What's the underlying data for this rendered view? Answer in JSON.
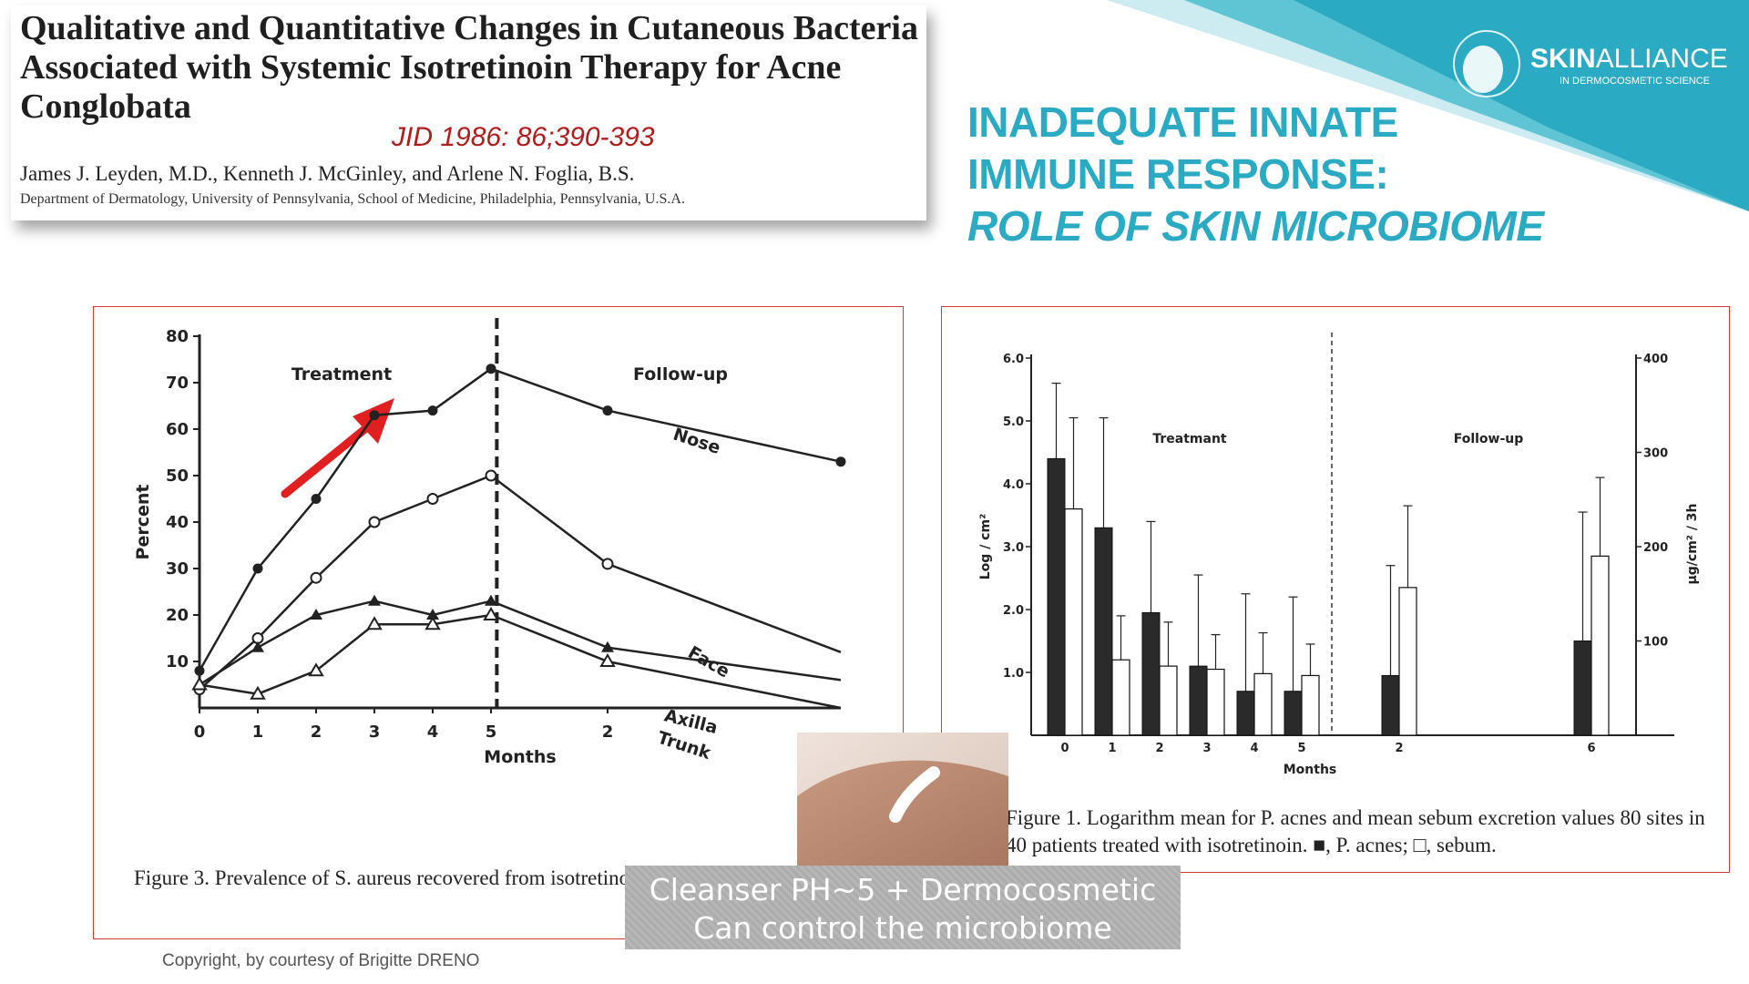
{
  "brand": {
    "name_bold": "SKIN",
    "name_light": "ALLIANCE",
    "tagline": "IN DERMOCOSMETIC SCIENCE",
    "accent": "#2aaac3"
  },
  "paper": {
    "title": "Qualitative and Quantitative Changes in Cutaneous Bacteria Associated with Systemic Isotretinoin Therapy for Acne Conglobata",
    "reference": "JID 1986: 86;390-393",
    "authors": "James J. Leyden, M.D., Kenneth J. McGinley, and Arlene N. Foglia, B.S.",
    "affiliation": "Department of Dermatology, University of Pennsylvania, School of Medicine, Philadelphia, Pennsylvania, U.S.A."
  },
  "headline": {
    "line1": "INADEQUATE INNATE",
    "line2": "IMMUNE RESPONSE:",
    "line3": "ROLE OF SKIN MICROBIOME"
  },
  "banner": {
    "line1": "Cleanser PH~5  + Dermocosmetic",
    "line2": "Can control the microbiome"
  },
  "copyright": "Copyright, by courtesy of Brigitte DRENO",
  "chart_data": [
    {
      "type": "line",
      "caption": "Figure 3. Prevalence of S. aureus recovered from isotretinoin.",
      "xlabel": "Months",
      "ylabel": "Percent",
      "ylim": [
        0,
        80
      ],
      "yticks": [
        10,
        20,
        30,
        40,
        50,
        60,
        70,
        80
      ],
      "x_positions": [
        0,
        1,
        2,
        3,
        4,
        5,
        7,
        11
      ],
      "xtick_labels": [
        "0",
        "1",
        "2",
        "3",
        "4",
        "5",
        "2",
        ""
      ],
      "phases": [
        "Treatment",
        "Follow-up"
      ],
      "phase_divider": 5.1,
      "grid": false,
      "series": [
        {
          "name": "Nose",
          "marker": "filled-circle",
          "values": [
            8,
            30,
            45,
            63,
            64,
            73,
            64,
            53
          ]
        },
        {
          "name": "Face",
          "marker": "open-circle",
          "values": [
            4,
            15,
            28,
            40,
            45,
            50,
            31,
            12
          ]
        },
        {
          "name": "Axilla",
          "marker": "filled-triangle",
          "values": [
            5,
            13,
            20,
            23,
            20,
            23,
            13,
            6
          ]
        },
        {
          "name": "Trunk",
          "marker": "open-triangle",
          "values": [
            5,
            3,
            8,
            18,
            18,
            20,
            10,
            0
          ]
        }
      ]
    },
    {
      "type": "bar",
      "caption": "Figure 1. Logarithm mean for P. acnes and mean sebum excretion values 80 sites in 40 patients treated with isotretinoin. ■, P. acnes; □, sebum.",
      "xlabel": "Months",
      "ylabel": "Log / cm²",
      "ylabel_right": "µg/cm² / 3h",
      "ylim": [
        0,
        6
      ],
      "ylim_right": [
        0,
        400
      ],
      "yticks": [
        "1.0",
        "2.0",
        "3.0",
        "4.0",
        "5.0",
        "6.0"
      ],
      "yticks_right": [
        "100",
        "200",
        "300",
        "400"
      ],
      "categories": [
        "0",
        "1",
        "2",
        "3",
        "4",
        "5",
        "2",
        "6"
      ],
      "phases": [
        "Treatmant",
        "Follow-up"
      ],
      "grid": false,
      "series": [
        {
          "name": "P. acnes",
          "fill": "filled",
          "values": [
            4.4,
            3.3,
            1.95,
            1.1,
            0.7,
            0.7,
            0.95,
            1.5
          ],
          "error": [
            1.2,
            1.75,
            1.45,
            1.45,
            1.55,
            1.5,
            1.75,
            2.05
          ]
        },
        {
          "name": "sebum",
          "fill": "open",
          "values": [
            3.6,
            1.2,
            1.1,
            1.05,
            0.98,
            0.95,
            2.35,
            2.85
          ],
          "error": [
            1.45,
            0.7,
            0.7,
            0.55,
            0.65,
            0.5,
            1.3,
            1.25
          ]
        }
      ]
    }
  ]
}
